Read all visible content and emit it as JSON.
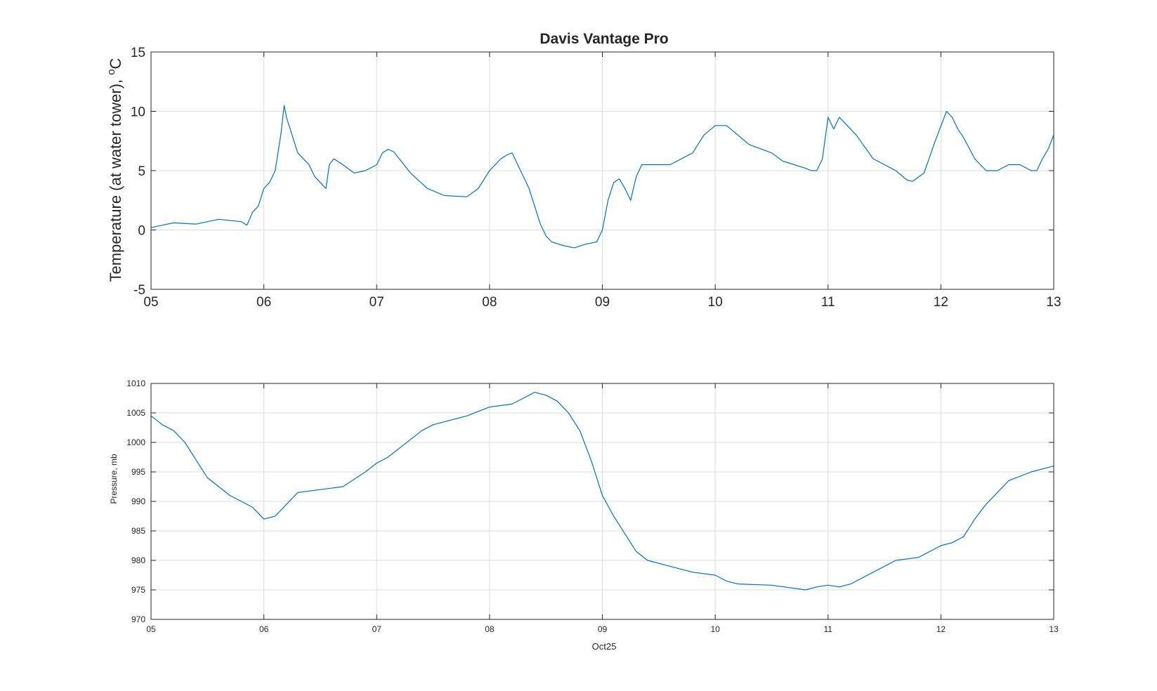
{
  "chart_data": [
    {
      "type": "line",
      "title": "Davis Vantage Pro",
      "ylabel": "Temperature (at water tower),",
      "ylabel_unit_sup": "o",
      "ylabel_unit": "C",
      "xlabel": "",
      "xlim": [
        5,
        13
      ],
      "ylim": [
        -5,
        15
      ],
      "x_ticks": [
        5,
        6,
        7,
        8,
        9,
        10,
        11,
        12,
        13
      ],
      "x_tick_labels": [
        "05",
        "06",
        "07",
        "08",
        "09",
        "10",
        "11",
        "12",
        "13"
      ],
      "y_ticks": [
        -5,
        0,
        5,
        10,
        15
      ],
      "y_tick_labels": [
        "-5",
        "0",
        "5",
        "10",
        "15"
      ],
      "grid": true,
      "color": "#0072bd",
      "series": [
        {
          "x": [
            5.0,
            5.1,
            5.2,
            5.4,
            5.6,
            5.8,
            5.85,
            5.9,
            5.95,
            6.0,
            6.05,
            6.1,
            6.15,
            6.18,
            6.2,
            6.25,
            6.3,
            6.35,
            6.4,
            6.45,
            6.5,
            6.55,
            6.58,
            6.62,
            6.7,
            6.8,
            6.9,
            7.0,
            7.05,
            7.1,
            7.15,
            7.2,
            7.3,
            7.45,
            7.6,
            7.8,
            7.9,
            8.0,
            8.1,
            8.15,
            8.2,
            8.25,
            8.35,
            8.4,
            8.45,
            8.5,
            8.55,
            8.65,
            8.75,
            8.85,
            8.95,
            9.0,
            9.05,
            9.1,
            9.15,
            9.2,
            9.25,
            9.3,
            9.35,
            9.4,
            9.6,
            9.8,
            9.9,
            10.0,
            10.1,
            10.2,
            10.3,
            10.5,
            10.6,
            10.7,
            10.8,
            10.85,
            10.9,
            10.95,
            11.0,
            11.05,
            11.1,
            11.15,
            11.25,
            11.4,
            11.5,
            11.6,
            11.7,
            11.75,
            11.85,
            11.95,
            12.05,
            12.1,
            12.15,
            12.2,
            12.3,
            12.4,
            12.5,
            12.6,
            12.7,
            12.8,
            12.85,
            12.9,
            12.95,
            13.0
          ],
          "y": [
            0.2,
            0.4,
            0.6,
            0.5,
            0.9,
            0.7,
            0.4,
            1.5,
            2.0,
            3.5,
            4.0,
            5.0,
            8.0,
            10.5,
            9.5,
            8.0,
            6.5,
            6.0,
            5.5,
            4.5,
            4.0,
            3.5,
            5.5,
            6.0,
            5.5,
            4.8,
            5.0,
            5.5,
            6.5,
            6.8,
            6.6,
            6.0,
            4.8,
            3.5,
            2.9,
            2.8,
            3.5,
            5.0,
            6.0,
            6.3,
            6.5,
            5.5,
            3.5,
            2.0,
            0.5,
            -0.5,
            -1.0,
            -1.3,
            -1.5,
            -1.2,
            -1.0,
            0.0,
            2.5,
            4.0,
            4.3,
            3.5,
            2.5,
            4.5,
            5.5,
            5.5,
            5.5,
            6.5,
            8.0,
            8.8,
            8.8,
            8.0,
            7.2,
            6.5,
            5.8,
            5.5,
            5.2,
            5.0,
            5.0,
            6.0,
            9.5,
            8.5,
            9.5,
            9.0,
            8.0,
            6.0,
            5.5,
            5.0,
            4.2,
            4.1,
            4.8,
            7.5,
            10.0,
            9.5,
            8.5,
            7.8,
            6.0,
            5.0,
            5.0,
            5.5,
            5.5,
            5.0,
            5.0,
            6.0,
            6.8,
            8.0
          ]
        }
      ]
    },
    {
      "type": "line",
      "title": "",
      "ylabel": "Pressure, mb",
      "xlabel": "Oct25",
      "xlim": [
        5,
        13
      ],
      "ylim": [
        970,
        1010
      ],
      "x_ticks": [
        5,
        6,
        7,
        8,
        9,
        10,
        11,
        12,
        13
      ],
      "x_tick_labels": [
        "05",
        "06",
        "07",
        "08",
        "09",
        "10",
        "11",
        "12",
        "13"
      ],
      "y_ticks": [
        970,
        975,
        980,
        985,
        990,
        995,
        1000,
        1005,
        1010
      ],
      "y_tick_labels": [
        "970",
        "975",
        "980",
        "985",
        "990",
        "995",
        "1000",
        "1005",
        "1010"
      ],
      "grid": true,
      "color": "#0072bd",
      "series": [
        {
          "x": [
            5.0,
            5.1,
            5.2,
            5.3,
            5.5,
            5.7,
            5.9,
            6.0,
            6.1,
            6.2,
            6.3,
            6.5,
            6.7,
            6.9,
            7.0,
            7.1,
            7.3,
            7.4,
            7.5,
            7.8,
            8.0,
            8.2,
            8.3,
            8.35,
            8.4,
            8.5,
            8.6,
            8.7,
            8.8,
            8.9,
            9.0,
            9.1,
            9.2,
            9.3,
            9.4,
            9.6,
            9.8,
            10.0,
            10.1,
            10.2,
            10.5,
            10.8,
            10.9,
            11.0,
            11.1,
            11.2,
            11.4,
            11.6,
            11.8,
            12.0,
            12.1,
            12.2,
            12.3,
            12.4,
            12.5,
            12.6,
            12.8,
            12.9,
            13.0
          ],
          "y": [
            1004.5,
            1003.0,
            1002.0,
            1000.0,
            994.0,
            991.0,
            989.0,
            987.0,
            987.5,
            989.5,
            991.5,
            992.0,
            992.5,
            995.0,
            996.5,
            997.5,
            1000.5,
            1002.0,
            1003.0,
            1004.5,
            1006.0,
            1006.5,
            1007.5,
            1008.0,
            1008.5,
            1008.0,
            1007.0,
            1005.0,
            1002.0,
            997.0,
            991.0,
            987.5,
            984.5,
            981.5,
            980.0,
            979.0,
            978.0,
            977.5,
            976.5,
            976.0,
            975.8,
            975.0,
            975.5,
            975.8,
            975.5,
            976.0,
            978.0,
            980.0,
            980.5,
            982.5,
            983.0,
            984.0,
            987.0,
            989.5,
            991.5,
            993.5,
            995.0,
            995.5,
            996.0
          ]
        }
      ]
    }
  ]
}
